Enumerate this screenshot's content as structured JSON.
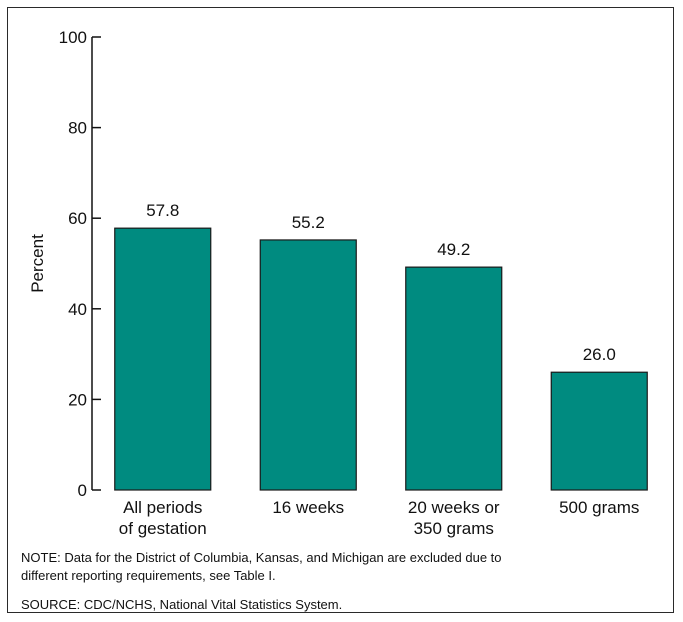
{
  "chart_data": {
    "type": "bar",
    "categories": [
      [
        "All periods",
        "of gestation"
      ],
      [
        "16 weeks"
      ],
      [
        "20 weeks or",
        "350 grams"
      ],
      [
        "500 grams"
      ]
    ],
    "values": [
      57.8,
      55.2,
      49.2,
      26.0
    ],
    "value_labels": [
      "57.8",
      "55.2",
      "49.2",
      "26.0"
    ],
    "ylabel": "Percent",
    "ylim": [
      0,
      100
    ],
    "yticks": [
      0,
      20,
      40,
      60,
      80,
      100
    ],
    "bar_color": "#008b80",
    "bar_edge_color": "#1a1a1a",
    "grid": false,
    "legend": "none"
  },
  "notes": {
    "note_line1": "NOTE: Data for the District of Columbia, Kansas, and Michigan are excluded due to",
    "note_line2": "different reporting requirements, see Table I.",
    "source": "SOURCE: CDC/NCHS, National Vital Statistics System."
  }
}
